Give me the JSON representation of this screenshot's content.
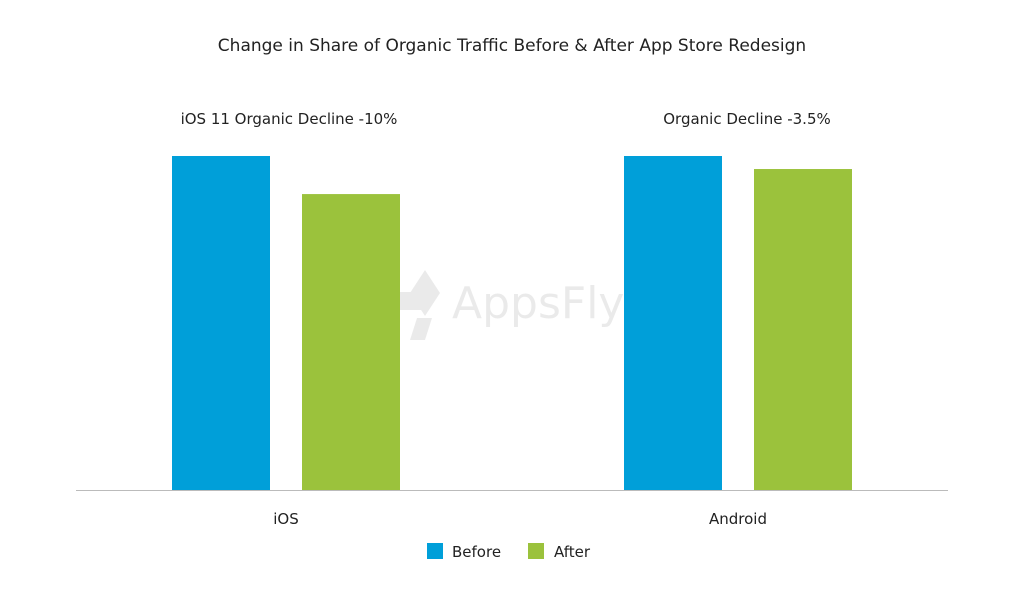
{
  "chart_data": {
    "type": "bar",
    "title": "Change in Share of Organic Traffic Before & After App Store Redesign",
    "categories": [
      "iOS",
      "Android"
    ],
    "series": [
      {
        "name": "Before",
        "color": "#009fd9",
        "values": [
          100,
          100
        ]
      },
      {
        "name": "After",
        "color": "#9bc23c",
        "values": [
          88.6,
          96.1
        ]
      }
    ],
    "annotations": [
      "iOS 11 Organic Decline -10%",
      "Organic Decline -3.5%"
    ],
    "ylim": [
      0,
      100
    ],
    "y_axis_visible": false,
    "grid": false,
    "legend_position": "bottom",
    "watermark": "AppsFlyer"
  }
}
